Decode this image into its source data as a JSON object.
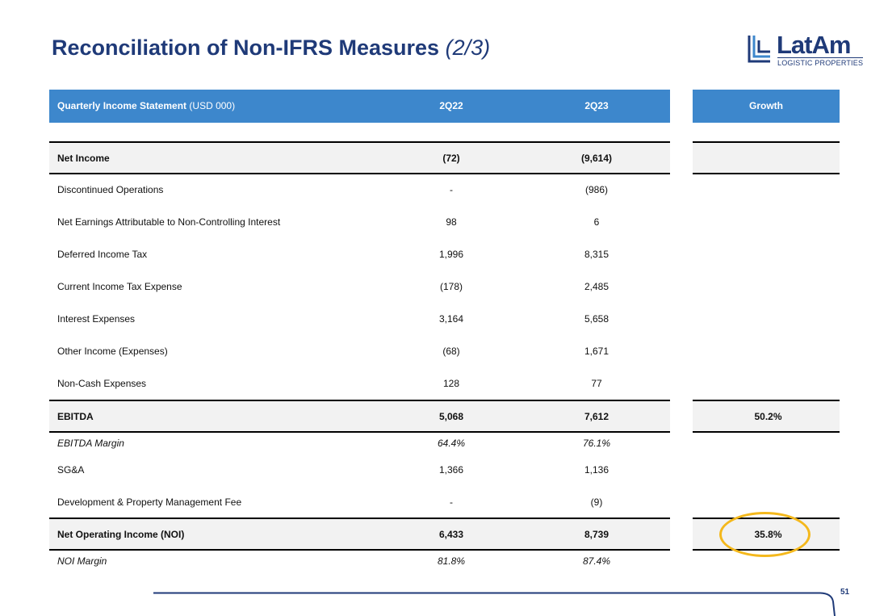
{
  "title": {
    "main": "Reconciliation of Non-IFRS Measures",
    "sub": "(2/3)"
  },
  "logo": {
    "brand": "LatAm",
    "tagline": "LOGISTIC PROPERTIES",
    "colors": {
      "primary": "#1f3a78",
      "accent": "#3d87cc"
    }
  },
  "table": {
    "header": {
      "label_bold": "Quarterly Income Statement",
      "label_unit": "(USD 000)",
      "col1": "2Q22",
      "col2": "2Q23",
      "col3": "Growth"
    },
    "rows": [
      {
        "label": "Net Income",
        "q22": "(72)",
        "q23": "(9,614)",
        "growth": "",
        "style": "shaded bold"
      },
      {
        "label": "Discontinued Operations",
        "q22": "-",
        "q23": "(986)",
        "growth": "",
        "style": ""
      },
      {
        "label": "Net Earnings Attributable to Non-Controlling Interest",
        "q22": "98",
        "q23": "6",
        "growth": "",
        "style": ""
      },
      {
        "label": "Deferred Income Tax",
        "q22": "1,996",
        "q23": "8,315",
        "growth": "",
        "style": ""
      },
      {
        "label": "Current Income Tax Expense",
        "q22": "(178)",
        "q23": "2,485",
        "growth": "",
        "style": ""
      },
      {
        "label": "Interest Expenses",
        "q22": "3,164",
        "q23": "5,658",
        "growth": "",
        "style": ""
      },
      {
        "label": "Other Income (Expenses)",
        "q22": "(68)",
        "q23": "1,671",
        "growth": "",
        "style": ""
      },
      {
        "label": "Non-Cash Expenses",
        "q22": "128",
        "q23": "77",
        "growth": "",
        "style": ""
      },
      {
        "label": "EBITDA",
        "q22": "5,068",
        "q23": "7,612",
        "growth": "50.2%",
        "style": "shaded bold"
      },
      {
        "label": "EBITDA Margin",
        "q22": "64.4%",
        "q23": "76.1%",
        "growth": "",
        "style": "italic"
      },
      {
        "label": "SG&A",
        "q22": "1,366",
        "q23": "1,136",
        "growth": "",
        "style": ""
      },
      {
        "label": "Development & Property Management Fee",
        "q22": "-",
        "q23": "(9)",
        "growth": "",
        "style": ""
      },
      {
        "label": "Net Operating Income (NOI)",
        "q22": "6,433",
        "q23": "8,739",
        "growth": "35.8%",
        "style": "shaded bold"
      },
      {
        "label": "NOI Margin",
        "q22": "81.8%",
        "q23": "87.4%",
        "growth": "",
        "style": "italic"
      }
    ]
  },
  "highlight": {
    "target": "Net Operating Income (NOI) growth",
    "color": "#f4b81c"
  },
  "page_number": "51"
}
